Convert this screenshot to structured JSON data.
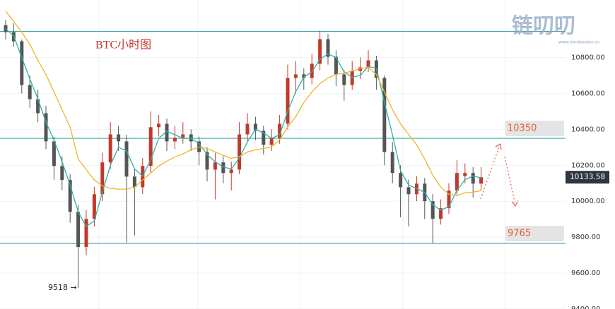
{
  "chart_data": {
    "type": "candlestick",
    "title": "BTC小时图",
    "watermark": "链叨叨",
    "watermark_url": "www.liandaodao.cn",
    "low_annotation": "9518 →",
    "ylim": [
      9400,
      11120
    ],
    "yticks": [
      {
        "value": 9400,
        "label": "9400.00"
      },
      {
        "value": 9600,
        "label": "9600.00"
      },
      {
        "value": 9800,
        "label": "9800.00"
      },
      {
        "value": 10000,
        "label": "10000.00"
      },
      {
        "value": 10200,
        "label": "10200.00"
      },
      {
        "value": 10400,
        "label": "10400.00"
      },
      {
        "value": 10600,
        "label": "10600.00"
      },
      {
        "value": 10800,
        "label": "10800.00"
      }
    ],
    "levels": [
      10945,
      {
        "value": 10350,
        "label": "10350"
      },
      {
        "value": 9765,
        "label": "9765"
      }
    ],
    "last_price": 10133.58,
    "up_color": "#c0392b",
    "down_color": "#555555",
    "candles": [
      [
        10980,
        11010,
        10900,
        10941
      ],
      [
        10941,
        10990,
        10860,
        10890
      ],
      [
        10890,
        10900,
        10600,
        10647
      ],
      [
        10647,
        10700,
        10520,
        10568
      ],
      [
        10568,
        10620,
        10440,
        10490
      ],
      [
        10490,
        10530,
        10290,
        10333
      ],
      [
        10333,
        10360,
        10120,
        10196
      ],
      [
        10196,
        10250,
        10060,
        10118
      ],
      [
        10118,
        10150,
        9880,
        9941
      ],
      [
        9941,
        9980,
        9518,
        9745
      ],
      [
        9745,
        9950,
        9700,
        9902
      ],
      [
        9902,
        10080,
        9860,
        10039
      ],
      [
        10039,
        10270,
        10000,
        10216
      ],
      [
        10216,
        10440,
        10180,
        10372
      ],
      [
        10372,
        10420,
        10280,
        10333
      ],
      [
        10333,
        10370,
        9770,
        10137
      ],
      [
        10137,
        10180,
        9810,
        10078
      ],
      [
        10078,
        10240,
        10040,
        10196
      ],
      [
        10196,
        10500,
        10160,
        10412
      ],
      [
        10412,
        10480,
        10360,
        10431
      ],
      [
        10431,
        10460,
        10280,
        10333
      ],
      [
        10333,
        10420,
        10290,
        10353
      ],
      [
        10353,
        10440,
        10320,
        10372
      ],
      [
        10372,
        10400,
        10280,
        10333
      ],
      [
        10333,
        10360,
        10200,
        10274
      ],
      [
        10274,
        10300,
        10110,
        10176
      ],
      [
        10176,
        10270,
        10010,
        10216
      ],
      [
        10216,
        10250,
        10100,
        10157
      ],
      [
        10157,
        10220,
        10060,
        10176
      ],
      [
        10176,
        10440,
        10150,
        10372
      ],
      [
        10372,
        10490,
        10330,
        10431
      ],
      [
        10431,
        10470,
        10340,
        10392
      ],
      [
        10392,
        10420,
        10260,
        10314
      ],
      [
        10314,
        10400,
        10280,
        10353
      ],
      [
        10353,
        10480,
        10320,
        10431
      ],
      [
        10431,
        10760,
        10400,
        10686
      ],
      [
        10686,
        10780,
        10600,
        10706
      ],
      [
        10706,
        10740,
        10620,
        10686
      ],
      [
        10686,
        10820,
        10650,
        10765
      ],
      [
        10765,
        10950,
        10730,
        10902
      ],
      [
        10902,
        10930,
        10760,
        10804
      ],
      [
        10804,
        10840,
        10640,
        10706
      ],
      [
        10706,
        10730,
        10560,
        10647
      ],
      [
        10647,
        10780,
        10620,
        10725
      ],
      [
        10725,
        10800,
        10680,
        10745
      ],
      [
        10745,
        10840,
        10720,
        10784
      ],
      [
        10784,
        10810,
        10620,
        10686
      ],
      [
        10686,
        10700,
        10200,
        10274
      ],
      [
        10274,
        10330,
        10100,
        10157
      ],
      [
        10157,
        10200,
        9910,
        10078
      ],
      [
        10078,
        10120,
        9860,
        10039
      ],
      [
        10039,
        10140,
        10000,
        10098
      ],
      [
        10098,
        10130,
        9900,
        10000
      ],
      [
        10000,
        10040,
        9765,
        9902
      ],
      [
        9902,
        10010,
        9870,
        9961
      ],
      [
        9961,
        10100,
        9930,
        10059
      ],
      [
        10059,
        10230,
        10030,
        10157
      ],
      [
        10140,
        10210,
        10100,
        10157
      ],
      [
        10157,
        10190,
        10020,
        10098
      ],
      [
        10098,
        10190,
        10060,
        10133.58
      ]
    ],
    "series": [
      {
        "color": "#2bb3a6",
        "values": [
          10960,
          10920,
          10800,
          10680,
          10570,
          10440,
          10340,
          10220,
          10090,
          9940,
          9860,
          9890,
          10050,
          10200,
          10300,
          10280,
          10180,
          10140,
          10230,
          10350,
          10390,
          10370,
          10350,
          10350,
          10320,
          10260,
          10220,
          10190,
          10180,
          10240,
          10330,
          10400,
          10380,
          10350,
          10370,
          10500,
          10610,
          10690,
          10720,
          10790,
          10820,
          10800,
          10720,
          10690,
          10700,
          10750,
          10740,
          10550,
          10370,
          10170,
          10090,
          10070,
          10050,
          9980,
          9950,
          9970,
          10060,
          10120,
          10140,
          10130
        ]
      },
      {
        "color": "#f0b429",
        "values": [
          11058,
          11000,
          10941,
          10874,
          10784,
          10706,
          10608,
          10510,
          10412,
          10235,
          10176,
          10118,
          10086,
          10071,
          10067,
          10067,
          10078,
          10118,
          10157,
          10196,
          10223,
          10247,
          10263,
          10286,
          10302,
          10294,
          10274,
          10255,
          10239,
          10247,
          10274,
          10286,
          10294,
          10302,
          10341,
          10412,
          10470,
          10549,
          10608,
          10655,
          10686,
          10706,
          10713,
          10725,
          10737,
          10745,
          10706,
          10608,
          10510,
          10431,
          10372,
          10314,
          10235,
          10145,
          10078,
          10039,
          10031,
          10047,
          10051,
          10059
        ]
      }
    ]
  }
}
